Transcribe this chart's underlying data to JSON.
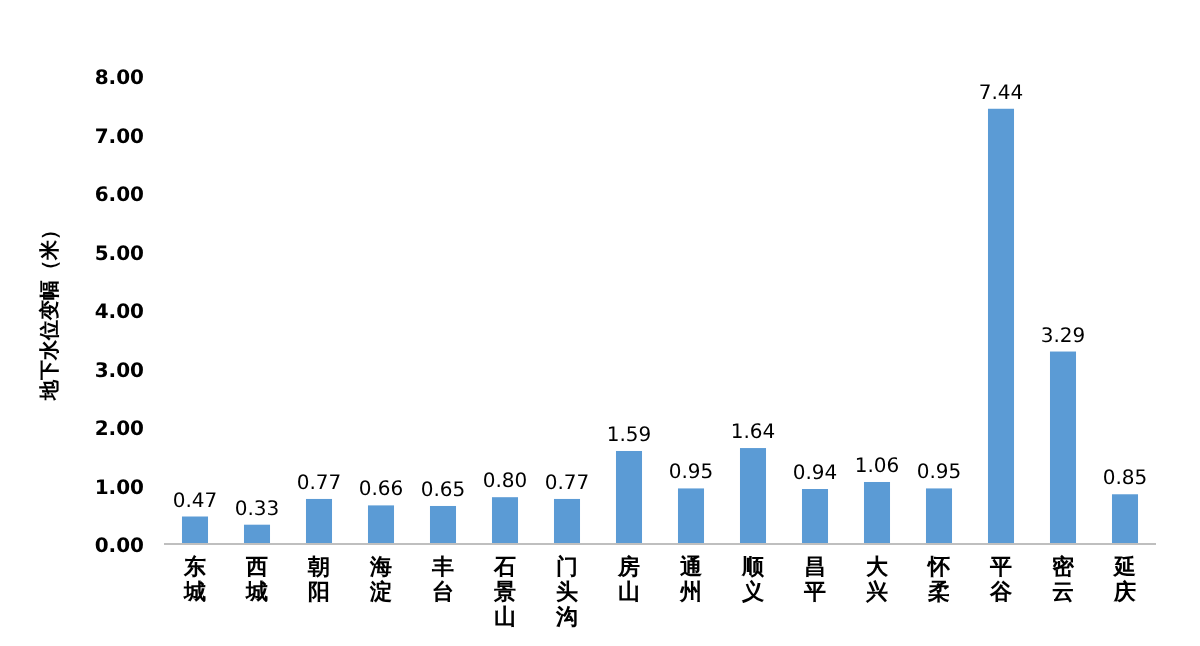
{
  "chart_data": {
    "type": "bar",
    "ylabel": "地下水位变幅（米）",
    "categories": [
      "东城",
      "西城",
      "朝阳",
      "海淀",
      "丰台",
      "石景山",
      "门头沟",
      "房山",
      "通州",
      "顺义",
      "昌平",
      "大兴",
      "怀柔",
      "平谷",
      "密云",
      "延庆"
    ],
    "values": [
      0.47,
      0.33,
      0.77,
      0.66,
      0.65,
      0.8,
      0.77,
      1.59,
      0.95,
      1.64,
      0.94,
      1.06,
      0.95,
      7.44,
      3.29,
      0.85
    ],
    "value_labels": [
      "0.47",
      "0.33",
      "0.77",
      "0.66",
      "0.65",
      "0.80",
      "0.77",
      "1.59",
      "0.95",
      "1.64",
      "0.94",
      "1.06",
      "0.95",
      "7.44",
      "3.29",
      "0.85"
    ],
    "color": "#5b9bd5",
    "ylim": [
      0,
      8
    ],
    "yticks": [
      {
        "value": 0,
        "label": "0.00"
      },
      {
        "value": 1,
        "label": "1.00"
      },
      {
        "value": 2,
        "label": "2.00"
      },
      {
        "value": 3,
        "label": "3.00"
      },
      {
        "value": 4,
        "label": "4.00"
      },
      {
        "value": 5,
        "label": "5.00"
      },
      {
        "value": 6,
        "label": "6.00"
      },
      {
        "value": 7,
        "label": "7.00"
      },
      {
        "value": 8,
        "label": "8.00"
      }
    ],
    "grid": false
  }
}
